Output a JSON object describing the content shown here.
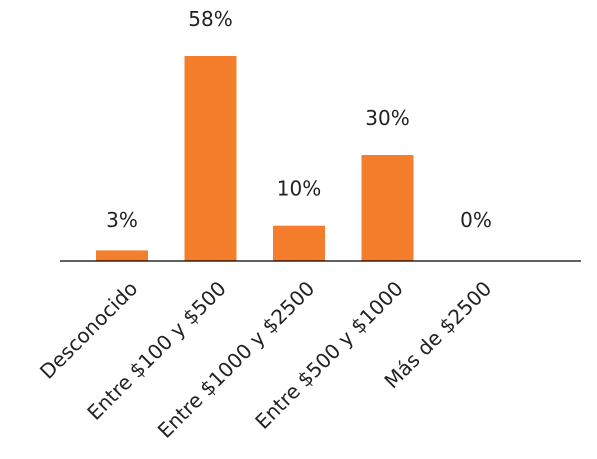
{
  "chart_data": {
    "type": "bar",
    "categories": [
      "Desconocido",
      "Entre $100 y $500",
      "Entre $1000 y $2500",
      "Entre $500 y $1000",
      "Más de $2500"
    ],
    "values": [
      3,
      58,
      10,
      30,
      0
    ],
    "data_labels": [
      "3%",
      "58%",
      "10%",
      "30%",
      "0%"
    ],
    "unit": "%",
    "ylim": [
      0,
      58
    ],
    "grid": false,
    "legend": "none",
    "bar_color": "#F47E2C",
    "axis_color": "#000000"
  }
}
